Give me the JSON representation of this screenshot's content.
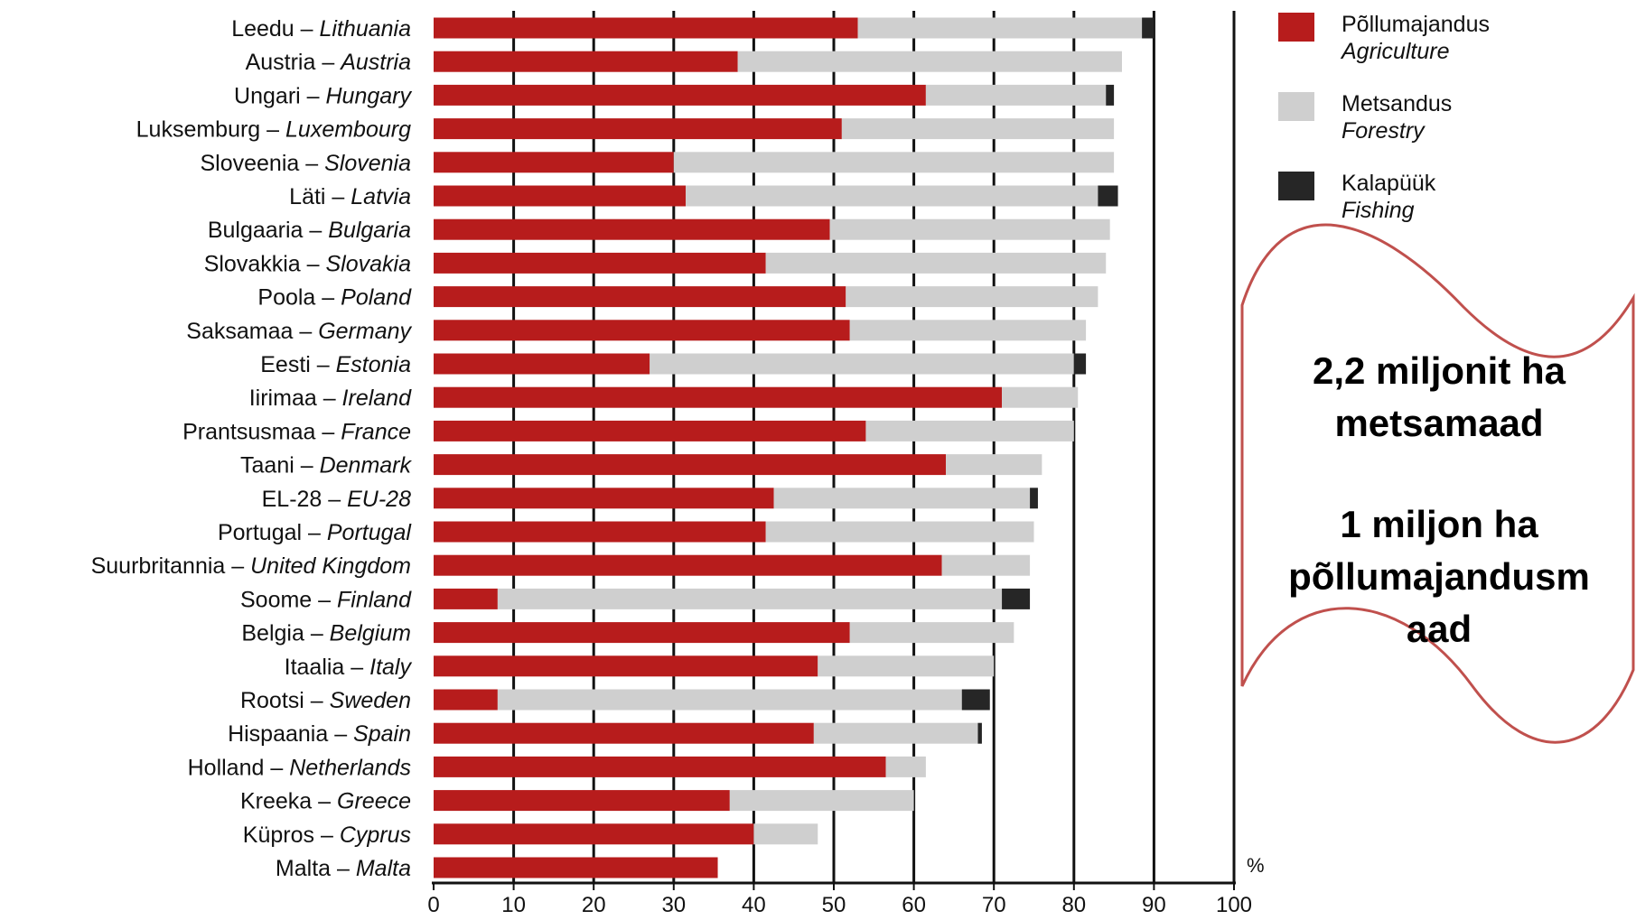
{
  "chart_data": {
    "type": "bar",
    "orientation": "horizontal",
    "stacked": true,
    "categories_et": [
      "Leedu",
      "Austria",
      "Ungari",
      "Luksemburg",
      "Sloveenia",
      "Läti",
      "Bulgaaria",
      "Slovakkia",
      "Poola",
      "Saksamaa",
      "Eesti",
      "Iirimaa",
      "Prantsusmaa",
      "Taani",
      "EL-28",
      "Portugal",
      "Suurbritannia",
      "Soome",
      "Belgia",
      "Itaalia",
      "Rootsi",
      "Hispaania",
      "Holland",
      "Kreeka",
      "Küpros",
      "Malta"
    ],
    "categories_en": [
      "Lithuania",
      "Austria",
      "Hungary",
      "Luxembourg",
      "Slovenia",
      "Latvia",
      "Bulgaria",
      "Slovakia",
      "Poland",
      "Germany",
      "Estonia",
      "Ireland",
      "France",
      "Denmark",
      "EU-28",
      "Portugal",
      "United Kingdom",
      "Finland",
      "Belgium",
      "Italy",
      "Sweden",
      "Spain",
      "Netherlands",
      "Greece",
      "Cyprus",
      "Malta"
    ],
    "series": [
      {
        "name_et": "Põllumajandus",
        "name_en": "Agriculture",
        "color": "#b71c1c",
        "values": [
          53,
          38,
          61.5,
          51,
          30,
          31.5,
          49.5,
          41.5,
          51.5,
          52,
          27,
          71,
          54,
          64,
          42.5,
          41.5,
          63.5,
          8,
          52,
          48,
          8,
          47.5,
          56.5,
          37,
          40,
          35.5
        ]
      },
      {
        "name_et": "Metsandus",
        "name_en": "Forestry",
        "color": "#cfcfcf",
        "values": [
          35.5,
          48,
          22.5,
          34,
          55,
          51.5,
          35,
          42.5,
          31.5,
          29.5,
          53,
          9.5,
          26,
          12,
          32,
          33.5,
          11,
          63,
          20.5,
          22,
          58,
          20.5,
          5,
          23,
          8,
          0
        ]
      },
      {
        "name_et": "Kalapüük",
        "name_en": "Fishing",
        "color": "#262626",
        "values": [
          1.5,
          0,
          1,
          0,
          0,
          2.5,
          0,
          0,
          0,
          0,
          1.5,
          0,
          0,
          0,
          1,
          0,
          0,
          3.5,
          0,
          0,
          3.5,
          0.5,
          0,
          0,
          0,
          0
        ]
      }
    ],
    "xlim": [
      0,
      100
    ],
    "xticks": [
      0,
      10,
      20,
      30,
      40,
      50,
      60,
      70,
      80,
      90,
      100
    ],
    "xunit": "%",
    "grid": "vertical",
    "legend_position": "top-right"
  },
  "callout": {
    "line1": "2,2 miljonit ha",
    "line2": "metsamaad",
    "line3": "1 miljon ha",
    "line4": "põllumajandusm",
    "line5": "aad",
    "border_color": "#c0504d"
  }
}
